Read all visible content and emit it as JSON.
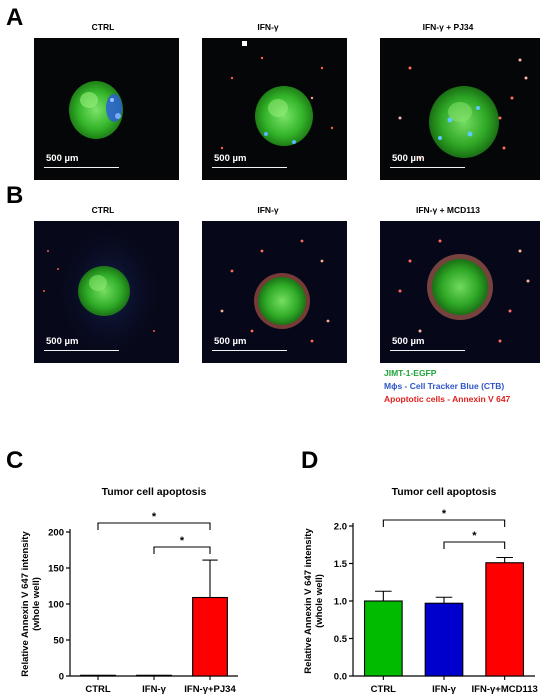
{
  "panels": {
    "A": {
      "letter": "A",
      "images": [
        {
          "title": "CTRL",
          "scale": "500 µm"
        },
        {
          "title": "IFN-γ",
          "scale": "500 µm"
        },
        {
          "title": "IFN-γ + PJ34",
          "scale": "500 µm"
        }
      ]
    },
    "B": {
      "letter": "B",
      "images": [
        {
          "title": "CTRL",
          "scale": "500 µm"
        },
        {
          "title": "IFN-γ",
          "scale": "500 µm"
        },
        {
          "title": "IFN-γ + MCD113",
          "scale": "500 µm"
        }
      ]
    },
    "C": {
      "letter": "C"
    },
    "D": {
      "letter": "D"
    }
  },
  "legend": [
    {
      "text": "JIMT-1-EGFP",
      "color": "#1fa33a"
    },
    {
      "text": "Mϕs - Cell Tracker Blue (CTB)",
      "color": "#2f55c8"
    },
    {
      "text": "Apoptotic cells - Annexin V 647",
      "color": "#e02020"
    }
  ],
  "chart_data": [
    {
      "type": "bar",
      "title": "Tumor cell apoptosis",
      "ylabel": "Relative Annexin V 647 intensity\n(whole well)",
      "categories": [
        "CTRL",
        "IFN-γ",
        "IFN-γ+PJ34"
      ],
      "values": [
        1,
        1,
        109
      ],
      "errors": [
        0,
        0,
        52
      ],
      "colors": [
        "#00bb00",
        "#0000cc",
        "#ff0000"
      ],
      "ylim": [
        0,
        200
      ],
      "yticks": [
        0,
        50,
        100,
        150,
        200
      ],
      "significance": [
        {
          "from": 0,
          "to": 2,
          "label": "*"
        },
        {
          "from": 1,
          "to": 2,
          "label": "*"
        }
      ]
    },
    {
      "type": "bar",
      "title": "Tumor cell apoptosis",
      "ylabel": "Relative Annexin V 647 intensity\n(whole well)",
      "categories": [
        "CTRL",
        "IFN-γ",
        "IFN-γ+MCD113"
      ],
      "values": [
        1.0,
        0.97,
        1.51
      ],
      "errors": [
        0.13,
        0.08,
        0.07
      ],
      "colors": [
        "#00bb00",
        "#0000cc",
        "#ff0000"
      ],
      "ylim": [
        0,
        2.0
      ],
      "yticks": [
        0.0,
        0.5,
        1.0,
        1.5,
        2.0
      ],
      "significance": [
        {
          "from": 0,
          "to": 2,
          "label": "*"
        },
        {
          "from": 1,
          "to": 2,
          "label": "*"
        }
      ]
    }
  ]
}
